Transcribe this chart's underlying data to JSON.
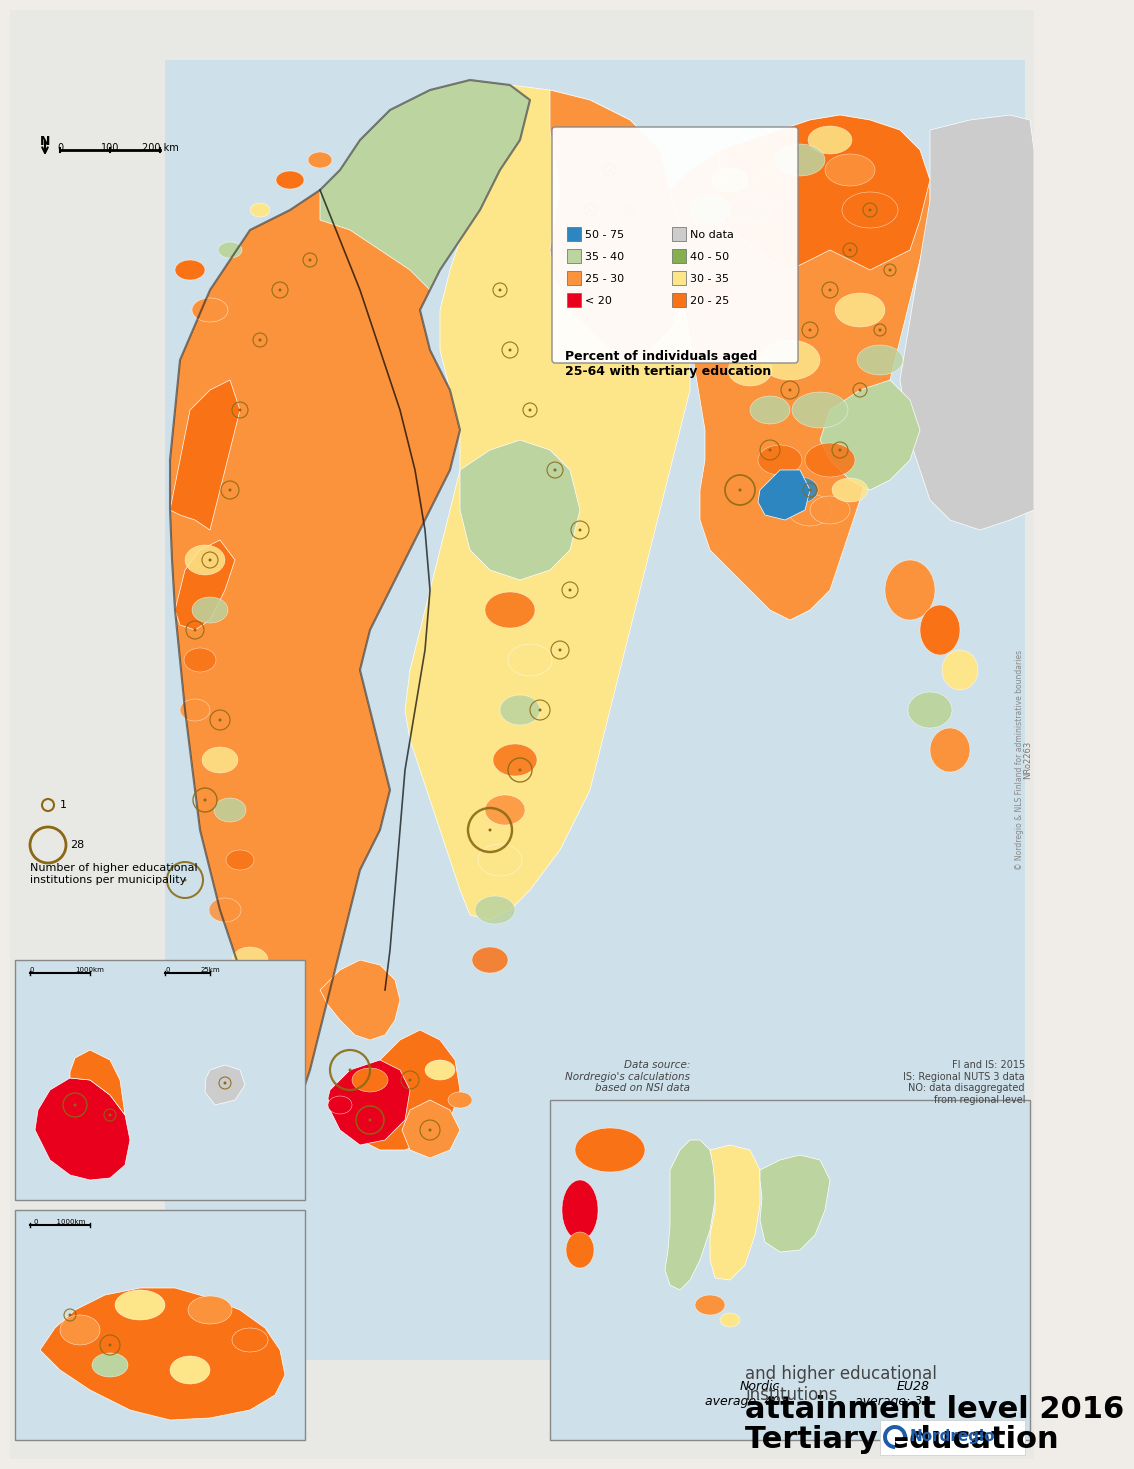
{
  "title_line1": "Tertiary education",
  "title_line2": "attainment level 2016",
  "subtitle": "and higher educational\ninstitutions",
  "nordregio_text": "Nordregio",
  "map_id": "NRo2263",
  "data_source": "Data source:\nNordregio's calculations\nbased on NSI data",
  "footnote1": "FI and IS: 2015",
  "footnote2": "IS: Regional NUTS 3 data",
  "footnote3": "NO: data disaggregated\nfrom regional level",
  "nordic_avg_text": "Nordic\naverage: 40",
  "eu_avg_text": "EU28\naverage: 31",
  "legend_title": "Percent of individuals aged\n25-64 with tertiary education",
  "legend_items": [
    {
      "label": "< 20",
      "color": "#e8001c"
    },
    {
      "label": "20 - 25",
      "color": "#f97316"
    },
    {
      "label": "25 - 30",
      "color": "#fb923c"
    },
    {
      "label": "30 - 35",
      "color": "#fde68a"
    },
    {
      "label": "35 - 40",
      "color": "#bcd4a0"
    },
    {
      "label": "40 - 50",
      "color": "#86b050"
    },
    {
      "label": "50 - 75",
      "color": "#2e86c1"
    },
    {
      "label": "No data",
      "color": "#cccccc"
    }
  ],
  "circle_legend_title": "Number of higher educational\ninstitutions per municipality",
  "circle_sizes": [
    28,
    1
  ],
  "background_color": "#f5f5f0",
  "map_bg": "#d4e4ef",
  "border_color": "#ffffff",
  "country_border_color": "#1a1a1a",
  "scale_bar_text1": "0     100     200 km",
  "scale_bar_text2": "0       1000km",
  "scale_bar_text3": "0      25km",
  "compass": "N",
  "nordregio_blue": "#1e5ca8"
}
